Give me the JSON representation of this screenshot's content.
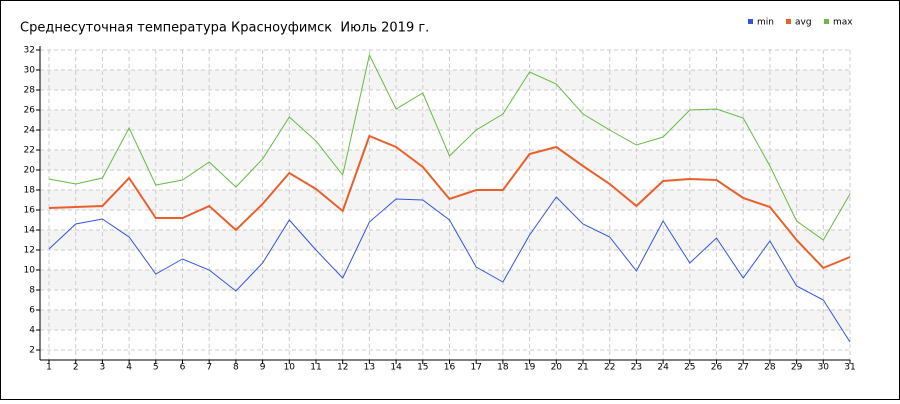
{
  "chart_data": {
    "type": "line",
    "title": "Среднесуточная температура Красноуфимск  Июль 2019 г.",
    "x": [
      1,
      2,
      3,
      4,
      5,
      6,
      7,
      8,
      9,
      10,
      11,
      12,
      13,
      14,
      15,
      16,
      17,
      18,
      19,
      20,
      21,
      22,
      23,
      24,
      25,
      26,
      27,
      28,
      29,
      30,
      31
    ],
    "series": [
      {
        "name": "min",
        "color": "#3355dd",
        "values": [
          12.1,
          14.6,
          15.1,
          13.3,
          9.6,
          11.1,
          10.0,
          7.9,
          10.7,
          15.0,
          12.0,
          9.2,
          14.8,
          17.1,
          17.0,
          15.0,
          10.3,
          8.8,
          13.5,
          17.3,
          14.6,
          13.3,
          9.9,
          14.9,
          10.7,
          13.2,
          9.2,
          12.9,
          8.4,
          7.0,
          2.8
        ]
      },
      {
        "name": "avg",
        "color": "#e8602c",
        "values": [
          16.2,
          16.3,
          16.4,
          19.2,
          15.2,
          15.2,
          16.4,
          14.0,
          16.6,
          19.7,
          18.1,
          15.9,
          23.4,
          22.3,
          20.3,
          17.1,
          18.0,
          18.0,
          21.6,
          22.3,
          20.4,
          18.6,
          16.4,
          18.9,
          19.1,
          19.0,
          17.2,
          16.3,
          13.0,
          10.2,
          11.3
        ]
      },
      {
        "name": "max",
        "color": "#66bb44",
        "values": [
          19.1,
          18.6,
          19.2,
          24.2,
          18.5,
          19.0,
          20.8,
          18.3,
          21.1,
          25.3,
          22.9,
          19.5,
          31.5,
          26.1,
          27.7,
          21.4,
          24.0,
          25.6,
          29.8,
          28.6,
          25.6,
          24.0,
          22.5,
          23.3,
          26.0,
          26.1,
          25.2,
          20.4,
          14.9,
          13.0,
          17.6
        ]
      }
    ],
    "xlim": [
      1,
      31
    ],
    "xticks": [
      1,
      2,
      3,
      4,
      5,
      6,
      7,
      8,
      9,
      10,
      11,
      12,
      13,
      14,
      15,
      16,
      17,
      18,
      19,
      20,
      21,
      22,
      23,
      24,
      25,
      26,
      27,
      28,
      29,
      30,
      31
    ],
    "ylim": [
      1,
      32
    ],
    "yticks": [
      2,
      4,
      6,
      8,
      10,
      12,
      14,
      16,
      18,
      20,
      22,
      24,
      26,
      28,
      30,
      32
    ],
    "grid": true,
    "legend": "top-right"
  }
}
